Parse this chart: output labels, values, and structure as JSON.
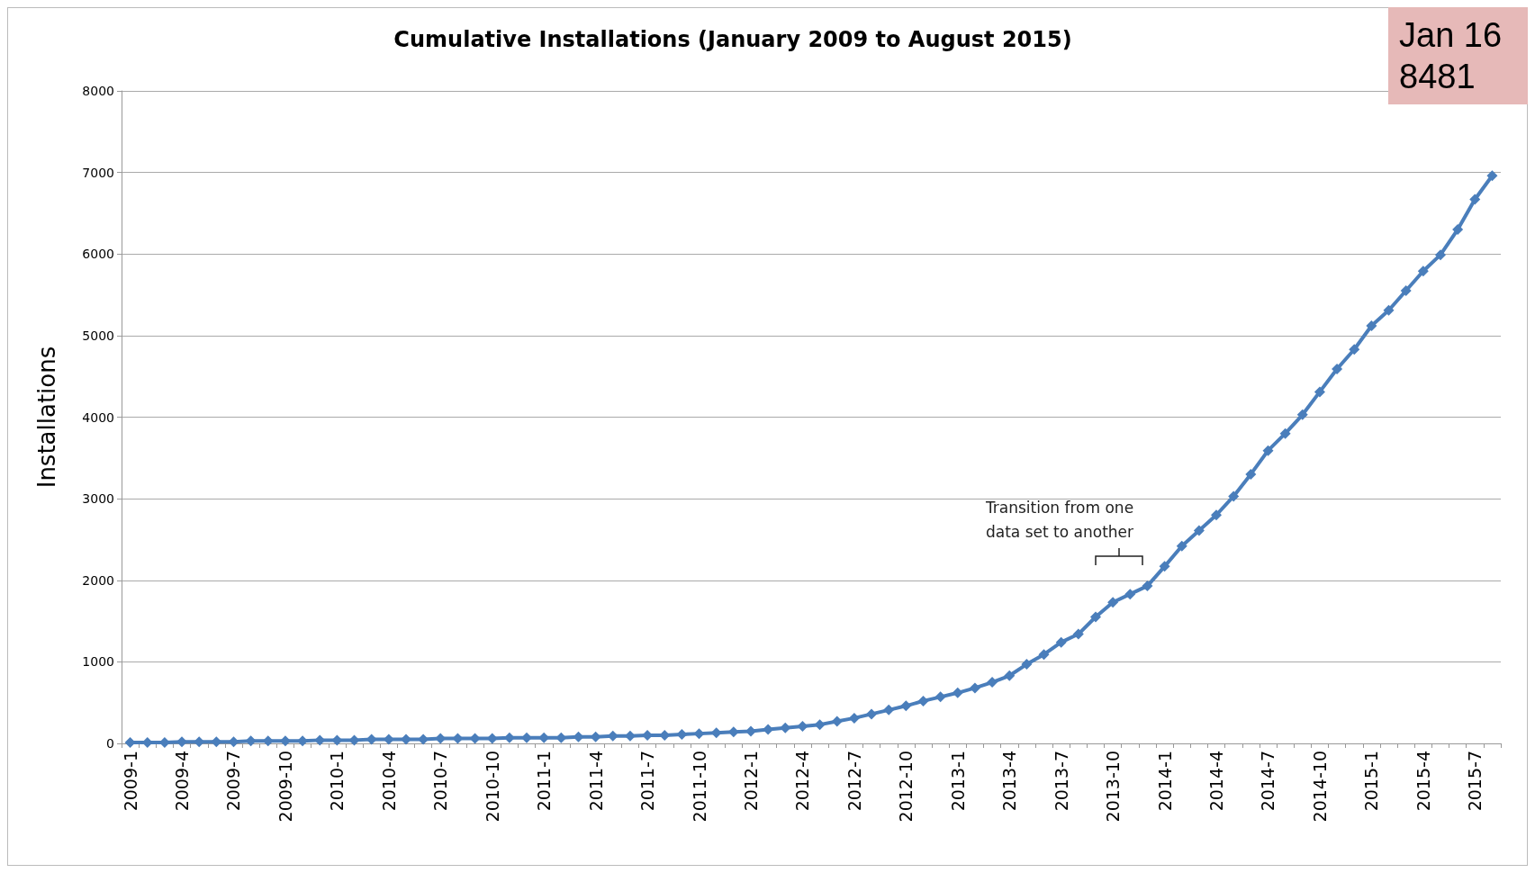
{
  "chart_data": {
    "type": "line",
    "title": "Cumulative Installations (January 2009 to August 2015)",
    "ylabel": "Installations",
    "categories": [
      "2009-1",
      null,
      null,
      "2009-4",
      null,
      null,
      "2009-7",
      null,
      null,
      "2009-10",
      null,
      null,
      "2010-1",
      null,
      null,
      "2010-4",
      null,
      null,
      "2010-7",
      null,
      null,
      "2010-10",
      null,
      null,
      "2011-1",
      null,
      null,
      "2011-4",
      null,
      null,
      "2011-7",
      null,
      null,
      "2011-10",
      null,
      null,
      "2012-1",
      null,
      null,
      "2012-4",
      null,
      null,
      "2012-7",
      null,
      null,
      "2012-10",
      null,
      null,
      "2013-1",
      null,
      null,
      "2013-4",
      null,
      null,
      "2013-7",
      null,
      null,
      "2013-10",
      null,
      null,
      "2014-1",
      null,
      null,
      "2014-4",
      null,
      null,
      "2014-7",
      null,
      null,
      "2014-10",
      null,
      null,
      "2015-1",
      null,
      null,
      "2015-4",
      null,
      null,
      "2015-7",
      null
    ],
    "series": [
      {
        "color": "#4a7ebb",
        "values": [
          10,
          10,
          10,
          20,
          20,
          20,
          20,
          30,
          30,
          30,
          30,
          40,
          40,
          40,
          50,
          50,
          50,
          50,
          60,
          60,
          60,
          60,
          70,
          70,
          70,
          70,
          80,
          80,
          90,
          90,
          100,
          100,
          110,
          120,
          130,
          140,
          150,
          170,
          190,
          210,
          230,
          270,
          310,
          360,
          410,
          460,
          520,
          570,
          620,
          680,
          750,
          830,
          970,
          1090,
          1240,
          1340,
          1550,
          1730,
          1830,
          1930,
          2170,
          2420,
          2610,
          2800,
          3030,
          3300,
          3590,
          3800,
          4030,
          4310,
          4590,
          4830,
          5120,
          5310,
          5550,
          5790,
          5990,
          6300,
          6670,
          6960
        ]
      }
    ],
    "ylim": [
      0,
      8000
    ],
    "yticks": [
      0,
      1000,
      2000,
      3000,
      4000,
      5000,
      6000,
      7000,
      8000
    ],
    "grid": "y",
    "marker": "diamond",
    "line_style": "solid",
    "annotations": [
      "Transition from one\ndata set to another",
      "Jan 16\n8481"
    ]
  }
}
